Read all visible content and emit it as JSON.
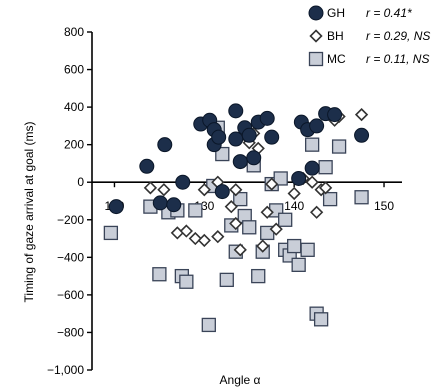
{
  "chart_data": {
    "type": "scatter",
    "xlabel": "Angle α",
    "ylabel": "Timing of gaze arrival at goal (ms)",
    "xlim": [
      117.5,
      152
    ],
    "ylim": [
      -1000,
      800
    ],
    "x_ticks": [
      120,
      130,
      140,
      150
    ],
    "x_tick_labels": [
      "120",
      "130",
      "140",
      "150"
    ],
    "y_ticks": [
      800,
      600,
      400,
      200,
      0,
      -200,
      -400,
      -600,
      -800,
      -1000
    ],
    "y_tick_labels": [
      "800",
      "600",
      "400",
      "200",
      "0",
      "−200",
      "−400",
      "−600",
      "−800",
      "−1,000"
    ],
    "legend_position": "top-right",
    "grid": false,
    "series": [
      {
        "name": "GH",
        "stat": "r = 0.41*",
        "marker": "circle",
        "color": "#1c2e4a",
        "points": [
          [
            120.2,
            -130
          ],
          [
            123.6,
            85
          ],
          [
            125.1,
            -110
          ],
          [
            125.6,
            200
          ],
          [
            126.6,
            -120
          ],
          [
            127.6,
            0
          ],
          [
            129.6,
            310
          ],
          [
            130.6,
            330
          ],
          [
            131.1,
            200
          ],
          [
            131.1,
            280
          ],
          [
            131.6,
            240
          ],
          [
            132.0,
            -50
          ],
          [
            133.5,
            380
          ],
          [
            133.5,
            230
          ],
          [
            134.0,
            110
          ],
          [
            134.5,
            290
          ],
          [
            135.0,
            250
          ],
          [
            135.5,
            130
          ],
          [
            136.0,
            320
          ],
          [
            137.0,
            340
          ],
          [
            137.5,
            240
          ],
          [
            140.5,
            20
          ],
          [
            140.8,
            320
          ],
          [
            141.5,
            280
          ],
          [
            142.0,
            75
          ],
          [
            142.5,
            300
          ],
          [
            143.5,
            365
          ],
          [
            144.5,
            360
          ],
          [
            147.5,
            250
          ]
        ]
      },
      {
        "name": "BH",
        "stat": "r = 0.29, NS",
        "marker": "diamond",
        "color": "#ffffff",
        "points": [
          [
            124.0,
            -30
          ],
          [
            125.5,
            -40
          ],
          [
            127.0,
            -270
          ],
          [
            128.0,
            -260
          ],
          [
            129.0,
            -300
          ],
          [
            130.0,
            -40
          ],
          [
            130.0,
            -310
          ],
          [
            131.5,
            0
          ],
          [
            131.5,
            -290
          ],
          [
            133.0,
            -130
          ],
          [
            133.5,
            -40
          ],
          [
            133.5,
            -220
          ],
          [
            134.0,
            -360
          ],
          [
            134.5,
            250
          ],
          [
            135.0,
            210
          ],
          [
            135.5,
            260
          ],
          [
            136.0,
            180
          ],
          [
            136.5,
            -340
          ],
          [
            137.0,
            -160
          ],
          [
            137.5,
            -10
          ],
          [
            138.0,
            -250
          ],
          [
            140.0,
            -60
          ],
          [
            141.0,
            20
          ],
          [
            142.0,
            0
          ],
          [
            142.5,
            -160
          ],
          [
            143.0,
            -40
          ],
          [
            143.5,
            -30
          ],
          [
            144.5,
            330
          ],
          [
            145.0,
            350
          ],
          [
            147.5,
            360
          ]
        ]
      },
      {
        "name": "MC",
        "stat": "r = 0.11, NS",
        "marker": "square",
        "color": "#c9ced8",
        "points": [
          [
            119.6,
            -270
          ],
          [
            124.0,
            -130
          ],
          [
            125.0,
            -490
          ],
          [
            126.0,
            -160
          ],
          [
            127.0,
            -150
          ],
          [
            127.5,
            -500
          ],
          [
            128.0,
            -530
          ],
          [
            129.0,
            -150
          ],
          [
            130.5,
            -760
          ],
          [
            131.0,
            -20
          ],
          [
            131.5,
            290
          ],
          [
            132.0,
            150
          ],
          [
            132.5,
            -520
          ],
          [
            133.0,
            -230
          ],
          [
            133.5,
            -370
          ],
          [
            134.0,
            -90
          ],
          [
            134.5,
            -180
          ],
          [
            135.0,
            -240
          ],
          [
            135.5,
            90
          ],
          [
            136.0,
            -500
          ],
          [
            136.5,
            -370
          ],
          [
            137.0,
            -270
          ],
          [
            137.5,
            -10
          ],
          [
            138.0,
            -150
          ],
          [
            138.5,
            20
          ],
          [
            139.0,
            -200
          ],
          [
            139.0,
            -360
          ],
          [
            139.5,
            -390
          ],
          [
            140.0,
            -340
          ],
          [
            140.5,
            -440
          ],
          [
            141.5,
            -360
          ],
          [
            142.0,
            200
          ],
          [
            142.5,
            -700
          ],
          [
            143.0,
            -730
          ],
          [
            143.5,
            80
          ],
          [
            144.0,
            -90
          ],
          [
            145.0,
            190
          ],
          [
            147.5,
            -80
          ]
        ]
      }
    ]
  }
}
